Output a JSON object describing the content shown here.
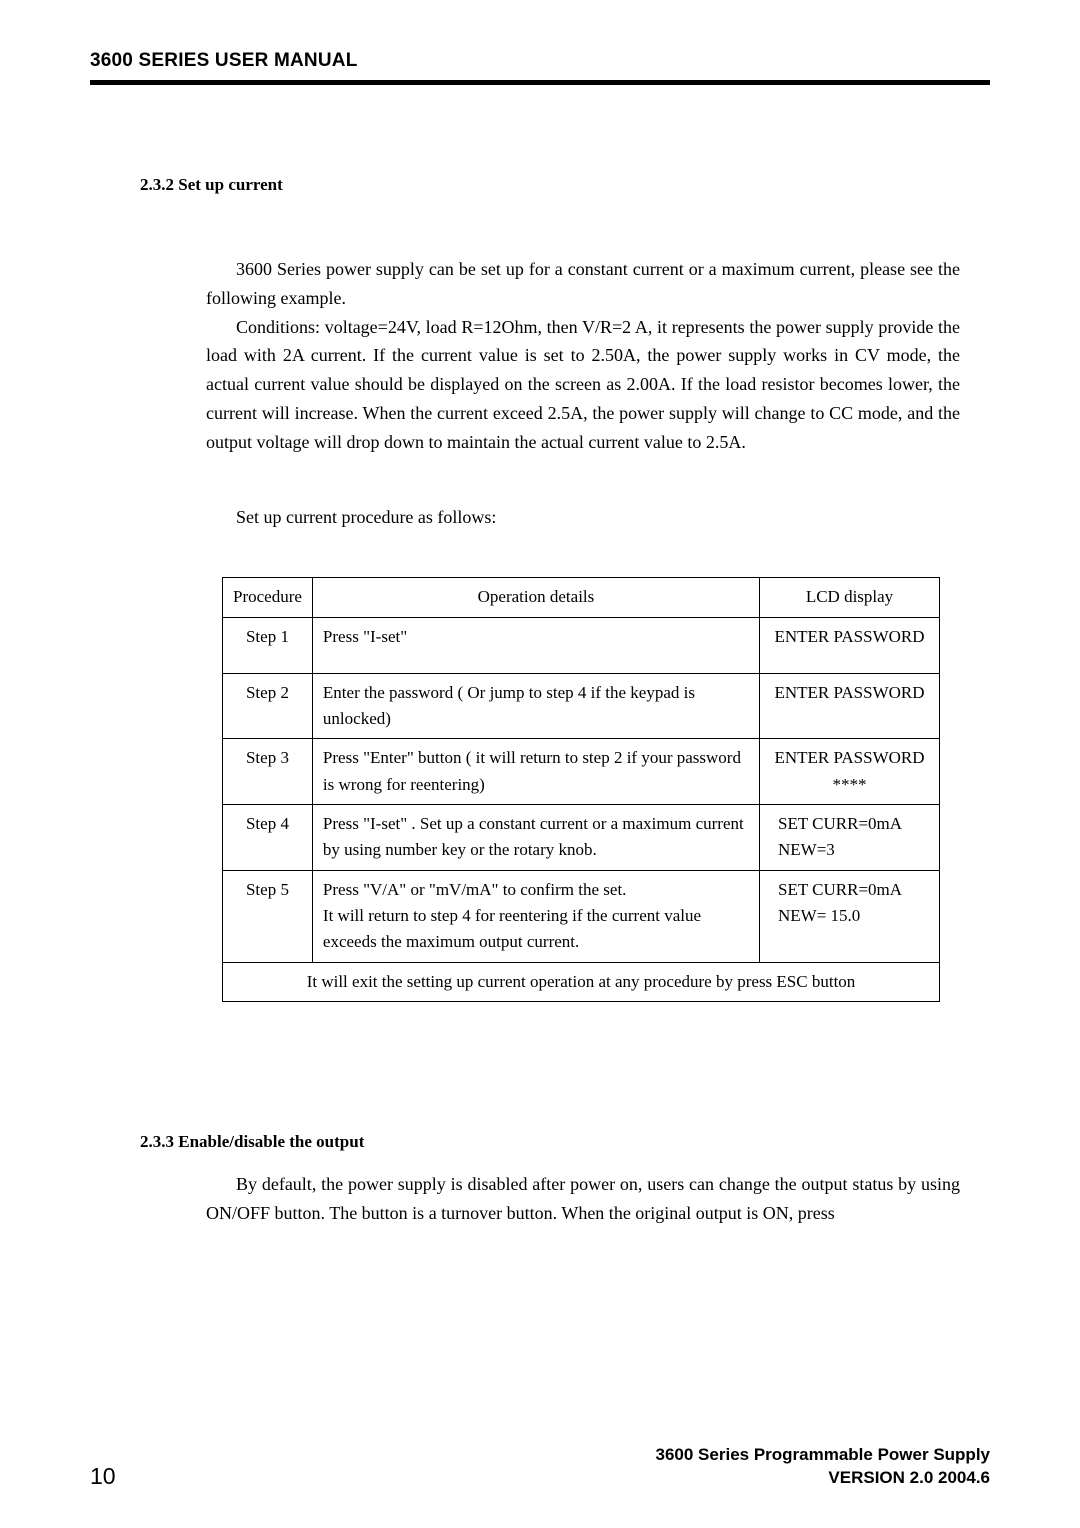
{
  "header": {
    "title": "3600 SERIES USER MANUAL"
  },
  "section1": {
    "heading": "2.3.2  Set up current",
    "para1": "3600 Series power supply can be set up for a constant current or a maximum current, please see the following example.",
    "para2": "Conditions: voltage=24V, load R=12Ohm, then V/R=2 A, it represents the power supply provide the load with 2A current. If the current value is set to 2.50A, the power supply works in CV mode, the actual current value should be displayed on the screen as 2.00A. If the load resistor becomes lower, the current will increase. When the current exceed 2.5A, the power supply will change to CC mode, and the output voltage will drop down to maintain the actual current value to 2.5A.",
    "para3": "Set up current procedure as follows:"
  },
  "table": {
    "headers": {
      "proc": "Procedure",
      "op": "Operation details",
      "lcd": "LCD display"
    },
    "rows": [
      {
        "proc": "Step 1",
        "op": "Press \"I-set\"",
        "lcd": "ENTER PASSWORD",
        "lcd_align": "center",
        "tall": true
      },
      {
        "proc": "Step 2",
        "op": "Enter the password ( Or jump to step 4 if the keypad is unlocked)",
        "lcd": "ENTER PASSWORD",
        "lcd_align": "center"
      },
      {
        "proc": "Step 3",
        "op": "Press \"Enter\" button ( it will return to step 2 if your password is wrong for reentering)",
        "lcd": "ENTER PASSWORD\n****",
        "lcd_align": "center"
      },
      {
        "proc": "Step 4",
        "op": "Press \"I-set\" . Set up a constant current or a maximum current by using number key or the rotary knob.",
        "lcd": "SET CURR=0mA\nNEW=3",
        "lcd_align": "left"
      },
      {
        "proc": "Step 5",
        "op": "Press \"V/A\" or \"mV/mA\" to confirm the set.\nIt will return to step 4 for reentering if the current value exceeds the maximum output current.",
        "lcd": "SET CURR=0mA\nNEW= 15.0",
        "lcd_align": "left"
      }
    ],
    "footer_row": "It will exit the setting up current operation at any procedure by press ESC button"
  },
  "section2": {
    "heading": "2.3.3 Enable/disable the output",
    "para1": "By default, the power supply is disabled after power on, users can change the output status by using ON/OFF button. The button is a turnover button. When the original output is ON, press"
  },
  "footer": {
    "page_num": "10",
    "line1": "3600 Series Programmable Power Supply",
    "line2": "VERSION 2.0  2004.6"
  }
}
